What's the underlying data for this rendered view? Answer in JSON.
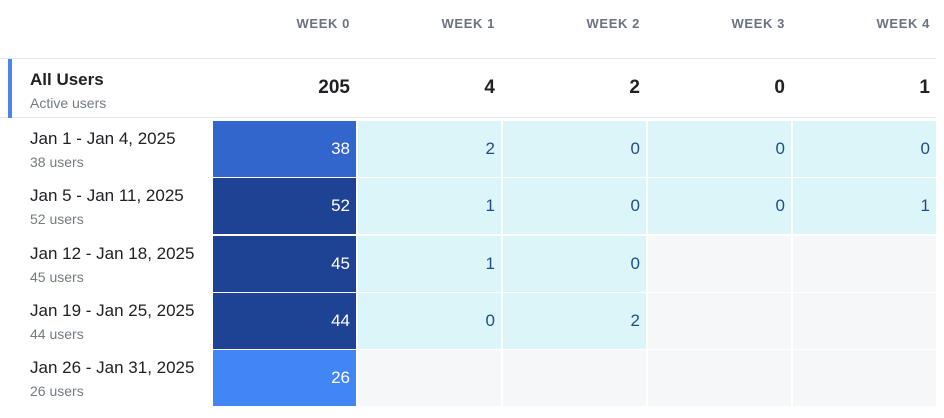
{
  "header": {
    "weeks": [
      "WEEK 0",
      "WEEK 1",
      "WEEK 2",
      "WEEK 3",
      "WEEK 4"
    ]
  },
  "totals": {
    "label": "All Users",
    "sublabel": "Active users",
    "values": [
      "205",
      "4",
      "2",
      "0",
      "1"
    ]
  },
  "cohorts": [
    {
      "label": "Jan 1 - Jan 4, 2025",
      "sublabel": "38 users",
      "values": [
        "38",
        "2",
        "0",
        "0",
        "0"
      ]
    },
    {
      "label": "Jan 5 - Jan 11, 2025",
      "sublabel": "52 users",
      "values": [
        "52",
        "1",
        "0",
        "0",
        "1"
      ]
    },
    {
      "label": "Jan 12 - Jan 18, 2025",
      "sublabel": "45 users",
      "values": [
        "45",
        "1",
        "0",
        null,
        null
      ]
    },
    {
      "label": "Jan 19 - Jan 25, 2025",
      "sublabel": "44 users",
      "values": [
        "44",
        "0",
        "2",
        null,
        null
      ]
    },
    {
      "label": "Jan 26 - Jan 31, 2025",
      "sublabel": "26 users",
      "values": [
        "26",
        null,
        null,
        null,
        null
      ]
    }
  ],
  "colors": {
    "week0_shades": [
      "#3366cc",
      "#1f4394",
      "#1f4394",
      "#1f4394",
      "#4285f4"
    ],
    "retention_cell": "#dcf5f8",
    "empty_cell": "#f6f7f9",
    "accent": "#4a86e8"
  }
}
